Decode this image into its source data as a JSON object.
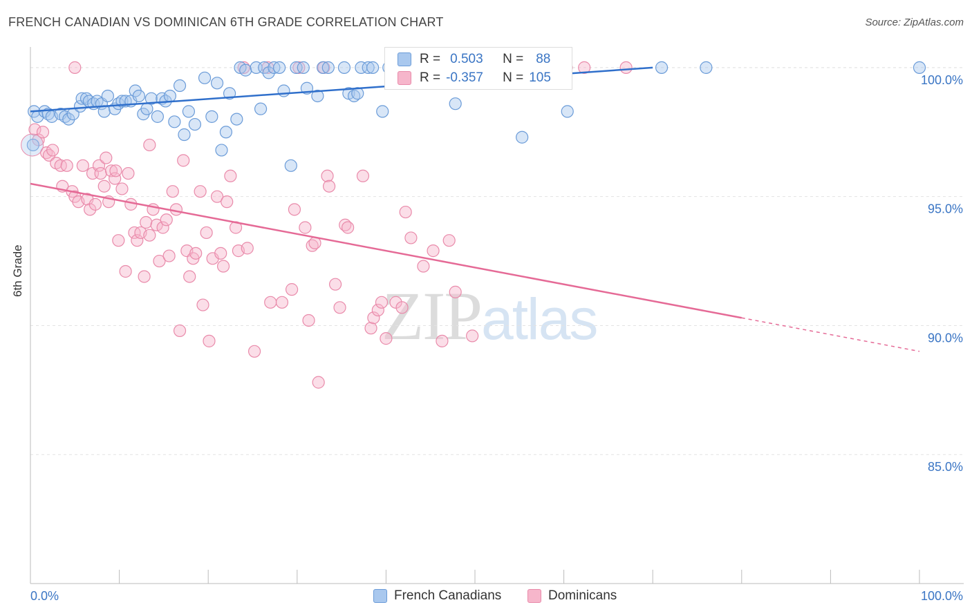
{
  "header": {
    "title": "FRENCH CANADIAN VS DOMINICAN 6TH GRADE CORRELATION CHART",
    "source": "Source: ZipAtlas.com"
  },
  "watermark": {
    "zip": "ZIP",
    "atlas": "atlas"
  },
  "stats": {
    "rows": [
      {
        "r_label": "R =",
        "r_value": "0.503",
        "n_label": "N =",
        "n_value": "88"
      },
      {
        "r_label": "R =",
        "r_value": "-0.357",
        "n_label": "N =",
        "n_value": "105"
      }
    ]
  },
  "legend": {
    "items": [
      {
        "label": "French Canadians"
      },
      {
        "label": "Dominicans"
      }
    ]
  },
  "chart_data": {
    "type": "scatter",
    "title": "FRENCH CANADIAN VS DOMINICAN 6TH GRADE CORRELATION CHART",
    "xlabel": "",
    "ylabel": "6th Grade",
    "xlim": [
      0,
      100
    ],
    "ylim": [
      80.0,
      100.8
    ],
    "x_tick_labels": [
      "0.0%",
      "100.0%"
    ],
    "y_ticks": [
      85.0,
      90.0,
      95.0,
      100.0
    ],
    "y_tick_labels": [
      "85.0%",
      "90.0%",
      "95.0%",
      "100.0%"
    ],
    "grid": true,
    "legend_position": "bottom-center",
    "colors": {
      "blue_fill": "#a9c8ee",
      "blue_stroke": "#6a9bd8",
      "blue_line": "#2f6fcb",
      "pink_fill": "#f6b6cb",
      "pink_stroke": "#e98aaa",
      "pink_line": "#e56a96",
      "tick_label": "#3a75c4"
    },
    "series": [
      {
        "name": "French Canadians",
        "r": 0.503,
        "n": 88,
        "trend": {
          "x0": 0,
          "y0": 98.3,
          "x1": 70,
          "y1": 100.0
        },
        "points": [
          [
            0.3,
            97.0
          ],
          [
            0.4,
            98.3
          ],
          [
            0.8,
            98.1
          ],
          [
            1.6,
            98.3
          ],
          [
            2.0,
            98.2
          ],
          [
            2.4,
            98.1
          ],
          [
            3.4,
            98.2
          ],
          [
            3.9,
            98.1
          ],
          [
            4.3,
            98.0
          ],
          [
            4.8,
            98.2
          ],
          [
            5.6,
            98.5
          ],
          [
            5.8,
            98.8
          ],
          [
            6.3,
            98.8
          ],
          [
            6.6,
            98.7
          ],
          [
            7.1,
            98.6
          ],
          [
            7.5,
            98.7
          ],
          [
            8.0,
            98.6
          ],
          [
            8.3,
            98.3
          ],
          [
            8.7,
            98.9
          ],
          [
            9.5,
            98.4
          ],
          [
            9.9,
            98.6
          ],
          [
            10.3,
            98.7
          ],
          [
            10.7,
            98.7
          ],
          [
            11.3,
            98.7
          ],
          [
            11.8,
            99.1
          ],
          [
            12.2,
            98.9
          ],
          [
            12.7,
            98.2
          ],
          [
            13.1,
            98.4
          ],
          [
            13.6,
            98.8
          ],
          [
            14.3,
            98.1
          ],
          [
            14.8,
            98.8
          ],
          [
            15.2,
            98.7
          ],
          [
            15.7,
            98.9
          ],
          [
            16.2,
            97.9
          ],
          [
            16.8,
            99.3
          ],
          [
            17.3,
            97.4
          ],
          [
            17.8,
            98.3
          ],
          [
            18.5,
            97.8
          ],
          [
            19.6,
            99.6
          ],
          [
            20.4,
            98.1
          ],
          [
            21.0,
            99.4
          ],
          [
            21.5,
            96.8
          ],
          [
            22.0,
            97.5
          ],
          [
            22.4,
            99.0
          ],
          [
            23.2,
            98.0
          ],
          [
            23.6,
            100.0
          ],
          [
            24.2,
            99.9
          ],
          [
            25.4,
            100.0
          ],
          [
            25.9,
            98.4
          ],
          [
            26.3,
            100.0
          ],
          [
            26.8,
            99.8
          ],
          [
            27.4,
            100.0
          ],
          [
            28.0,
            100.0
          ],
          [
            28.5,
            99.1
          ],
          [
            29.3,
            96.2
          ],
          [
            29.9,
            100.0
          ],
          [
            30.7,
            100.0
          ],
          [
            31.1,
            99.2
          ],
          [
            32.3,
            98.9
          ],
          [
            32.9,
            100.0
          ],
          [
            33.5,
            100.0
          ],
          [
            35.3,
            100.0
          ],
          [
            35.8,
            99.0
          ],
          [
            36.4,
            98.9
          ],
          [
            36.8,
            99.0
          ],
          [
            37.2,
            100.0
          ],
          [
            38.0,
            100.0
          ],
          [
            38.5,
            100.0
          ],
          [
            39.6,
            98.3
          ],
          [
            40.3,
            100.0
          ],
          [
            42.0,
            100.0
          ],
          [
            43.5,
            100.0
          ],
          [
            44.5,
            100.0
          ],
          [
            45.3,
            100.0
          ],
          [
            46.0,
            100.0
          ],
          [
            47.8,
            98.6
          ],
          [
            48.5,
            100.0
          ],
          [
            50.0,
            100.0
          ],
          [
            51.4,
            100.0
          ],
          [
            52.3,
            100.0
          ],
          [
            55.3,
            97.3
          ],
          [
            56.4,
            100.0
          ],
          [
            57.4,
            100.0
          ],
          [
            58.8,
            100.0
          ],
          [
            60.4,
            98.3
          ],
          [
            71.0,
            100.0
          ],
          [
            76.0,
            100.0
          ],
          [
            100.0,
            100.0
          ]
        ]
      },
      {
        "name": "Dominicans",
        "r": -0.357,
        "n": 105,
        "trend": {
          "x0": 0,
          "y0": 95.5,
          "x1": 80,
          "y1": 90.3,
          "x_dash_end": 100,
          "y_dash_end": 89.0
        },
        "points": [
          [
            0.5,
            97.6
          ],
          [
            0.9,
            97.2
          ],
          [
            1.4,
            97.5
          ],
          [
            1.8,
            96.7
          ],
          [
            2.1,
            96.6
          ],
          [
            2.5,
            96.8
          ],
          [
            2.9,
            96.3
          ],
          [
            3.4,
            96.2
          ],
          [
            3.6,
            95.4
          ],
          [
            4.1,
            96.2
          ],
          [
            4.7,
            95.2
          ],
          [
            5.0,
            95.0
          ],
          [
            5.4,
            94.8
          ],
          [
            5.9,
            96.2
          ],
          [
            6.4,
            94.9
          ],
          [
            6.7,
            94.5
          ],
          [
            7.0,
            95.9
          ],
          [
            7.3,
            94.7
          ],
          [
            7.7,
            96.2
          ],
          [
            7.9,
            95.9
          ],
          [
            8.3,
            95.4
          ],
          [
            8.5,
            96.5
          ],
          [
            8.8,
            94.8
          ],
          [
            9.1,
            96.0
          ],
          [
            9.5,
            95.7
          ],
          [
            9.9,
            93.3
          ],
          [
            10.3,
            95.3
          ],
          [
            10.7,
            92.1
          ],
          [
            11.0,
            95.9
          ],
          [
            11.3,
            94.7
          ],
          [
            11.7,
            93.6
          ],
          [
            12.0,
            93.3
          ],
          [
            12.4,
            93.6
          ],
          [
            12.8,
            91.9
          ],
          [
            13.0,
            94.0
          ],
          [
            13.4,
            93.5
          ],
          [
            13.8,
            94.5
          ],
          [
            14.2,
            93.9
          ],
          [
            14.5,
            92.5
          ],
          [
            14.9,
            93.8
          ],
          [
            15.3,
            94.1
          ],
          [
            15.6,
            92.7
          ],
          [
            16.0,
            95.2
          ],
          [
            16.4,
            94.5
          ],
          [
            16.8,
            89.8
          ],
          [
            17.2,
            96.4
          ],
          [
            17.6,
            92.9
          ],
          [
            17.9,
            91.9
          ],
          [
            18.3,
            92.6
          ],
          [
            18.6,
            92.8
          ],
          [
            19.1,
            95.2
          ],
          [
            19.4,
            90.8
          ],
          [
            19.8,
            93.6
          ],
          [
            20.1,
            89.4
          ],
          [
            20.5,
            92.6
          ],
          [
            21.0,
            95.0
          ],
          [
            21.4,
            92.8
          ],
          [
            21.7,
            92.3
          ],
          [
            22.1,
            94.8
          ],
          [
            22.5,
            95.8
          ],
          [
            23.1,
            93.8
          ],
          [
            23.4,
            92.9
          ],
          [
            24.0,
            100.0
          ],
          [
            24.4,
            93.0
          ],
          [
            25.2,
            89.0
          ],
          [
            26.7,
            100.0
          ],
          [
            27.0,
            90.9
          ],
          [
            28.3,
            90.9
          ],
          [
            29.4,
            91.4
          ],
          [
            29.7,
            94.5
          ],
          [
            30.2,
            100.0
          ],
          [
            30.9,
            93.8
          ],
          [
            31.3,
            90.2
          ],
          [
            31.7,
            93.1
          ],
          [
            32.0,
            93.2
          ],
          [
            32.4,
            87.8
          ],
          [
            33.0,
            100.0
          ],
          [
            33.4,
            95.8
          ],
          [
            33.6,
            95.4
          ],
          [
            34.3,
            91.6
          ],
          [
            34.8,
            90.7
          ],
          [
            35.4,
            93.9
          ],
          [
            37.4,
            95.8
          ],
          [
            38.3,
            89.9
          ],
          [
            38.6,
            90.3
          ],
          [
            39.1,
            90.6
          ],
          [
            39.5,
            90.9
          ],
          [
            40.0,
            89.5
          ],
          [
            41.1,
            90.9
          ],
          [
            41.8,
            90.7
          ],
          [
            42.2,
            94.4
          ],
          [
            42.8,
            93.4
          ],
          [
            44.2,
            92.3
          ],
          [
            45.3,
            92.9
          ],
          [
            46.3,
            89.4
          ],
          [
            47.1,
            93.3
          ],
          [
            47.8,
            91.3
          ],
          [
            49.7,
            89.6
          ],
          [
            60.3,
            100.0
          ],
          [
            62.3,
            100.0
          ],
          [
            67.0,
            100.0
          ],
          [
            35.7,
            93.8
          ],
          [
            13.4,
            97.0
          ],
          [
            9.6,
            96.0
          ],
          [
            5.0,
            100.0
          ]
        ]
      }
    ]
  }
}
